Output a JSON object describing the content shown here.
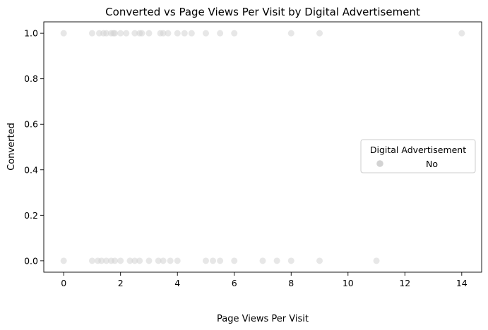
{
  "chart_data": {
    "type": "scatter",
    "title": "Converted vs Page Views Per Visit by Digital Advertisement",
    "xlabel": "Page Views Per Visit",
    "ylabel": "Converted",
    "xlim": [
      -0.7,
      14.7
    ],
    "ylim": [
      -0.05,
      1.05
    ],
    "xticks": [
      0,
      2,
      4,
      6,
      8,
      10,
      12,
      14
    ],
    "yticks": [
      0.0,
      0.2,
      0.4,
      0.6,
      0.8,
      1.0
    ],
    "ytick_labels": [
      "0.0",
      "0.2",
      "0.4",
      "0.6",
      "0.8",
      "1.0"
    ],
    "grid": false,
    "legend": {
      "title": "Digital Advertisement",
      "placement": "center-right",
      "entries": [
        "No"
      ]
    },
    "series": [
      {
        "name": "No",
        "color": "#d3d3d3",
        "points": [
          {
            "x": 0,
            "y": 1
          },
          {
            "x": 1,
            "y": 1
          },
          {
            "x": 1.25,
            "y": 1
          },
          {
            "x": 1.4,
            "y": 1
          },
          {
            "x": 1.5,
            "y": 1
          },
          {
            "x": 1.67,
            "y": 1
          },
          {
            "x": 1.75,
            "y": 1
          },
          {
            "x": 1.8,
            "y": 1
          },
          {
            "x": 2,
            "y": 1
          },
          {
            "x": 2.2,
            "y": 1
          },
          {
            "x": 2.5,
            "y": 1
          },
          {
            "x": 2.67,
            "y": 1
          },
          {
            "x": 2.75,
            "y": 1
          },
          {
            "x": 3,
            "y": 1
          },
          {
            "x": 3.4,
            "y": 1
          },
          {
            "x": 3.5,
            "y": 1
          },
          {
            "x": 3.67,
            "y": 1
          },
          {
            "x": 4,
            "y": 1
          },
          {
            "x": 4.25,
            "y": 1
          },
          {
            "x": 4.5,
            "y": 1
          },
          {
            "x": 5,
            "y": 1
          },
          {
            "x": 5.5,
            "y": 1
          },
          {
            "x": 6,
            "y": 1
          },
          {
            "x": 8,
            "y": 1
          },
          {
            "x": 9,
            "y": 1
          },
          {
            "x": 14,
            "y": 1
          },
          {
            "x": 0,
            "y": 0
          },
          {
            "x": 1,
            "y": 0
          },
          {
            "x": 1.2,
            "y": 0
          },
          {
            "x": 1.33,
            "y": 0
          },
          {
            "x": 1.5,
            "y": 0
          },
          {
            "x": 1.67,
            "y": 0
          },
          {
            "x": 1.8,
            "y": 0
          },
          {
            "x": 2,
            "y": 0
          },
          {
            "x": 2.33,
            "y": 0
          },
          {
            "x": 2.5,
            "y": 0
          },
          {
            "x": 2.67,
            "y": 0
          },
          {
            "x": 3,
            "y": 0
          },
          {
            "x": 3.33,
            "y": 0
          },
          {
            "x": 3.5,
            "y": 0
          },
          {
            "x": 3.75,
            "y": 0
          },
          {
            "x": 4,
            "y": 0
          },
          {
            "x": 5,
            "y": 0
          },
          {
            "x": 5.25,
            "y": 0
          },
          {
            "x": 5.5,
            "y": 0
          },
          {
            "x": 6,
            "y": 0
          },
          {
            "x": 7,
            "y": 0
          },
          {
            "x": 7.5,
            "y": 0
          },
          {
            "x": 8,
            "y": 0
          },
          {
            "x": 9,
            "y": 0
          },
          {
            "x": 11,
            "y": 0
          }
        ]
      }
    ]
  }
}
